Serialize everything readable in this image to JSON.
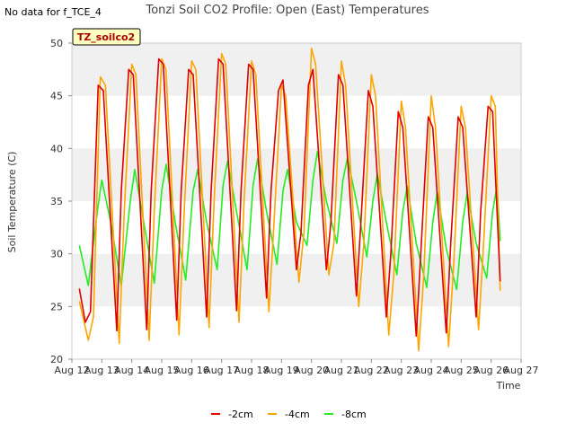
{
  "no_data_note": "No data for f_TCE_4",
  "colors": {
    "2cm": "#dd0000",
    "4cm": "#ffa500",
    "8cm": "#22ee22",
    "band": "#f0f0f0",
    "tag_bg": "#ffffc0"
  },
  "chart_data": {
    "type": "line",
    "title": "Tonzi Soil CO2 Profile: Open (East) Temperatures",
    "xlabel": "Time",
    "ylabel": "Soil Temperature (C)",
    "tag": "TZ_soilco2",
    "ylim": [
      20,
      50
    ],
    "xlim": [
      12,
      27
    ],
    "yticks": [
      20,
      25,
      30,
      35,
      40,
      45,
      50
    ],
    "xticks": [
      {
        "v": 12,
        "label": "Aug 12"
      },
      {
        "v": 13,
        "label": "Aug 13"
      },
      {
        "v": 14,
        "label": "Aug 14"
      },
      {
        "v": 15,
        "label": "Aug 15"
      },
      {
        "v": 16,
        "label": "Aug 16"
      },
      {
        "v": 17,
        "label": "Aug 17"
      },
      {
        "v": 18,
        "label": "Aug 18"
      },
      {
        "v": 19,
        "label": "Aug 19"
      },
      {
        "v": 20,
        "label": "Aug 20"
      },
      {
        "v": 21,
        "label": "Aug 21"
      },
      {
        "v": 22,
        "label": "Aug 22"
      },
      {
        "v": 23,
        "label": "Aug 23"
      },
      {
        "v": 24,
        "label": "Aug 24"
      },
      {
        "v": 25,
        "label": "Aug 25"
      },
      {
        "v": 26,
        "label": "Aug 26"
      },
      {
        "v": 27,
        "label": "Aug 27"
      }
    ],
    "legend_position": "bottom-center",
    "grid": "horizontal bands",
    "series": [
      {
        "name": "-2cm",
        "color": "#dd0000",
        "x": [
          12.25,
          12.45,
          12.62,
          12.88,
          13.05,
          13.5,
          13.65,
          13.9,
          14.05,
          14.5,
          14.65,
          14.9,
          15.05,
          15.5,
          15.65,
          15.9,
          16.05,
          16.5,
          16.65,
          16.9,
          17.05,
          17.5,
          17.65,
          17.9,
          18.05,
          18.5,
          18.65,
          18.9,
          19.05,
          19.5,
          19.65,
          19.9,
          20.05,
          20.5,
          20.65,
          20.9,
          21.05,
          21.5,
          21.65,
          21.9,
          22.05,
          22.5,
          22.65,
          22.9,
          23.05,
          23.5,
          23.65,
          23.9,
          24.05,
          24.5,
          24.65,
          24.9,
          25.05,
          25.5,
          25.65,
          25.9,
          26.05,
          26.3
        ],
        "y": [
          26.7,
          23.5,
          24.5,
          46,
          45.5,
          22.7,
          36,
          47.5,
          47,
          22.8,
          36,
          48.5,
          48,
          23.7,
          36,
          47.5,
          47,
          24,
          36,
          48.5,
          48,
          24.6,
          36,
          48,
          47.5,
          25.8,
          36,
          45.5,
          46.5,
          28.5,
          32,
          46,
          47.5,
          28.5,
          33,
          47,
          46,
          26,
          33,
          45.5,
          44,
          24,
          30,
          43.5,
          42,
          22.2,
          30,
          43,
          42,
          22.5,
          31,
          43,
          42,
          24,
          34,
          44,
          43.5,
          27.4
        ]
      },
      {
        "name": "-4cm",
        "color": "#ffa500",
        "x": [
          12.25,
          12.55,
          12.72,
          12.95,
          13.12,
          13.58,
          13.75,
          14.0,
          14.14,
          14.58,
          14.75,
          15.0,
          15.14,
          15.58,
          15.75,
          16.0,
          16.14,
          16.58,
          16.75,
          17.0,
          17.14,
          17.58,
          17.75,
          18.0,
          18.14,
          18.58,
          18.75,
          19.0,
          19.14,
          19.58,
          19.75,
          20.0,
          20.14,
          20.58,
          20.75,
          21.0,
          21.14,
          21.58,
          21.75,
          22.0,
          22.14,
          22.58,
          22.75,
          23.0,
          23.14,
          23.58,
          23.75,
          24.0,
          24.14,
          24.58,
          24.75,
          25.0,
          25.14,
          25.58,
          25.75,
          26.0,
          26.14,
          26.3
        ],
        "y": [
          25.5,
          21.8,
          24,
          46.8,
          46,
          21.5,
          34,
          48,
          47,
          21.8,
          34,
          48.5,
          47.5,
          22.3,
          34,
          48.3,
          47.5,
          23,
          35,
          49,
          48,
          23.5,
          35,
          48.3,
          47,
          24.5,
          33,
          46,
          45,
          27.3,
          32,
          49.5,
          48,
          28,
          31,
          48.3,
          46,
          25,
          31,
          47,
          45,
          22.3,
          28,
          44.5,
          42,
          20.8,
          28,
          45,
          42,
          21.2,
          29,
          44,
          42,
          22.8,
          31,
          45,
          44,
          26.5
        ]
      },
      {
        "name": "-8cm",
        "color": "#22ee22",
        "x": [
          12.25,
          12.55,
          12.85,
          13.0,
          13.3,
          13.65,
          13.95,
          14.1,
          14.4,
          14.75,
          15.0,
          15.15,
          15.45,
          15.8,
          16.05,
          16.2,
          16.5,
          16.85,
          17.05,
          17.2,
          17.5,
          17.85,
          18.05,
          18.2,
          18.5,
          18.85,
          19.05,
          19.2,
          19.5,
          19.85,
          20.05,
          20.2,
          20.5,
          20.85,
          21.05,
          21.2,
          21.5,
          21.85,
          22.05,
          22.2,
          22.5,
          22.85,
          23.05,
          23.2,
          23.5,
          23.85,
          24.05,
          24.2,
          24.5,
          24.85,
          25.05,
          25.2,
          25.5,
          25.85,
          26.05,
          26.2,
          26.3
        ],
        "y": [
          30.8,
          27,
          34,
          37,
          33,
          27,
          35,
          38,
          33,
          27.2,
          36,
          38.5,
          33,
          27.5,
          36,
          38,
          33,
          28.5,
          36.5,
          38.8,
          34,
          28.5,
          36.5,
          39,
          34,
          29,
          36,
          38,
          33,
          30.8,
          37,
          39.7,
          35,
          31,
          37,
          39.1,
          35,
          29.7,
          35,
          37.6,
          33,
          28,
          34,
          36.4,
          31,
          26.8,
          33,
          35.9,
          30.5,
          26.6,
          33,
          35.8,
          31,
          27.7,
          34,
          36.5,
          31.2
        ]
      }
    ]
  },
  "legend": {
    "items": [
      {
        "label": "-2cm",
        "color": "#dd0000"
      },
      {
        "label": "-4cm",
        "color": "#ffa500"
      },
      {
        "label": "-8cm",
        "color": "#22ee22"
      }
    ]
  }
}
